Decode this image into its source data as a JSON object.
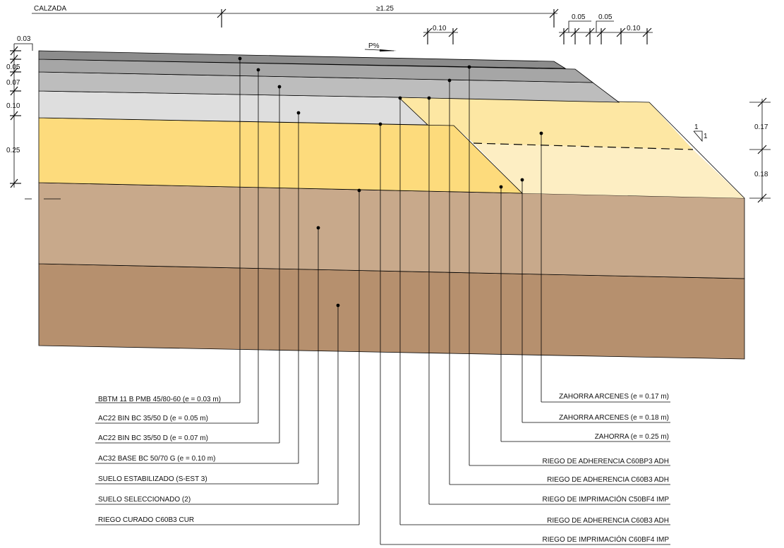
{
  "header": {
    "calzada": "CALZADA",
    "width_min": "≥1.25"
  },
  "slope": {
    "label": "P%",
    "side_ratio_top": "1",
    "side_ratio_side": "1"
  },
  "dimensions": {
    "left": [
      "0.03",
      "0.05",
      "0.07",
      "0.10",
      "0.25"
    ],
    "right": [
      "0.17",
      "0.18"
    ],
    "top": [
      "0.10",
      "0.05",
      "0.05",
      "0.10"
    ]
  },
  "labels_left": [
    "BBTM 11 B PMB 45/80-60 (e = 0.03 m)",
    "AC22 BIN BC 35/50 D (e = 0.05 m)",
    "AC22 BIN BC 35/50 D (e = 0.07 m)",
    "AC32 BASE BC 50/70 G (e = 0.10 m)",
    "SUELO ESTABILIZADO (S-EST 3)",
    "SUELO SELECCIONADO (2)",
    "RIEGO CURADO C60B3 CUR"
  ],
  "labels_right": [
    "ZAHORRA ARCENES (e = 0.17 m)",
    "ZAHORRA ARCENES (e = 0.18 m)",
    "ZAHORRA (e = 0.25 m)",
    "RIEGO DE ADHERENCIA C60BP3 ADH",
    "RIEGO DE ADHERENCIA C60B3 ADH",
    "RIEGO DE IMPRIMACIÓN C50BF4 IMP",
    "RIEGO DE ADHERENCIA C60B3 ADH",
    "RIEGO DE IMPRIMACIÓN C60BF4 IMP"
  ],
  "colors": {
    "surface": "#8c8c8c",
    "binder_upper": "#a6a6a6",
    "binder_lower": "#bdbdbd",
    "base_asphalt": "#dedede",
    "zahorra": "#fddb7c",
    "zahorra_arcenes_upper": "#fde7a3",
    "zahorra_arcenes_lower": "#fdeec3",
    "suelo_estabilizado": "#c8a98b",
    "suelo_seleccionado": "#b6906e"
  }
}
